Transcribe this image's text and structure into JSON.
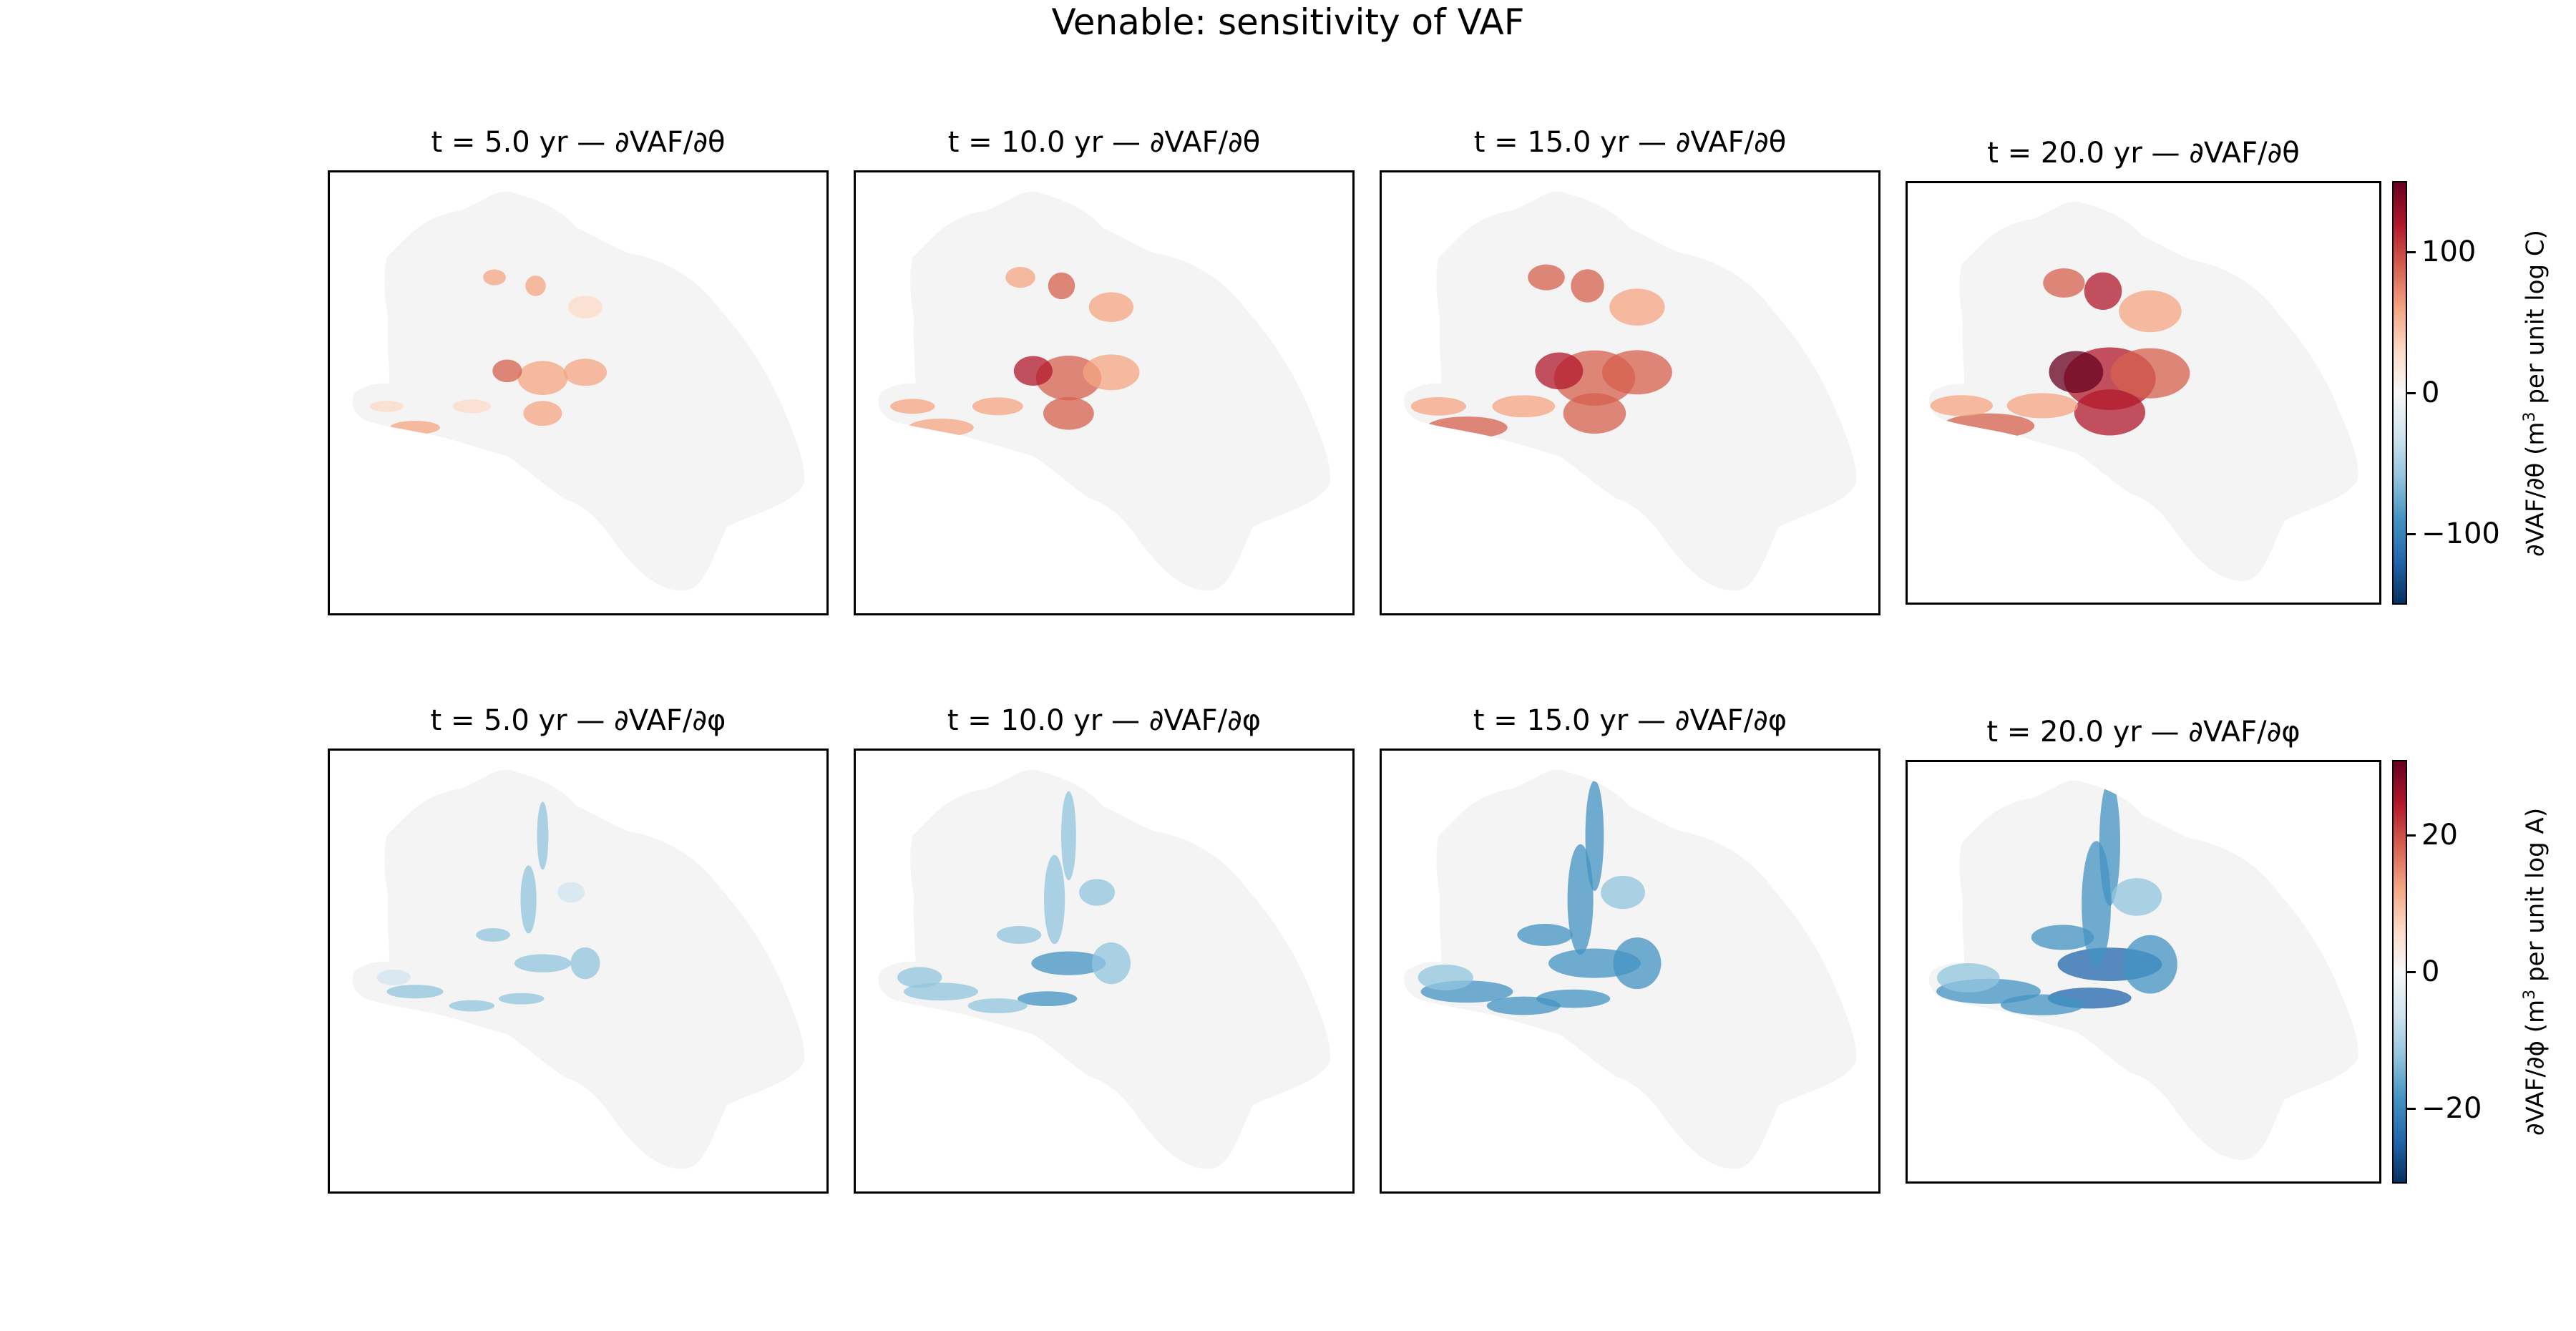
{
  "figure": {
    "title": "Venable: sensitivity of VAF"
  },
  "rows": [
    {
      "id": "theta",
      "panel_titles": [
        "t = 5.0 yr — ∂VAF/∂θ",
        "t = 10.0 yr — ∂VAF/∂θ",
        "t = 15.0 yr — ∂VAF/∂θ",
        "t = 20.0 yr — ∂VAF/∂θ"
      ],
      "colorbar": {
        "label_prefix": "∂VAF/∂θ  (m",
        "label_sup": "3",
        "label_suffix": " per unit log C)",
        "ticks": [
          "100",
          "0",
          "−100"
        ],
        "tick_values": [
          100,
          0,
          -100
        ],
        "range": [
          -150,
          150
        ],
        "colormap": "RdBu_r"
      }
    },
    {
      "id": "phi",
      "panel_titles": [
        "t = 5.0 yr — ∂VAF/∂φ",
        "t = 10.0 yr — ∂VAF/∂φ",
        "t = 15.0 yr — ∂VAF/∂φ",
        "t = 20.0 yr — ∂VAF/∂φ"
      ],
      "colorbar": {
        "label_prefix": "∂VAF/∂ϕ  (m",
        "label_sup": "3",
        "label_suffix": " per unit log A)",
        "ticks": [
          "20",
          "0",
          "−20"
        ],
        "tick_values": [
          20,
          0,
          -20
        ],
        "range": [
          -31,
          31
        ],
        "colormap": "RdBu_r"
      }
    }
  ],
  "chart_data": {
    "type": "heatmap",
    "title": "Venable: sensitivity of VAF",
    "layout": "2 rows × 4 columns of map panels, one colorbar per row (right side)",
    "times_yr": [
      5.0,
      10.0,
      15.0,
      20.0
    ],
    "quantities": [
      "∂VAF/∂θ",
      "∂VAF/∂φ"
    ],
    "colormap": "RdBu_r (diverging, blue negative, red positive)",
    "color_ranges": {
      "theta": [
        -150,
        150
      ],
      "phi": [
        -31,
        31
      ]
    },
    "observations": {
      "theta": "positive (red) sensitivity concentrated along western grounding-line region, intensifying with time up to ~150",
      "phi": "predominantly negative (blue) sensitivity along same region, intensifying with time down to ~-30"
    },
    "accent_colors": {
      "positive": "#b2182b",
      "negative": "#2166ac",
      "neutral": "#f7f7f7"
    }
  }
}
